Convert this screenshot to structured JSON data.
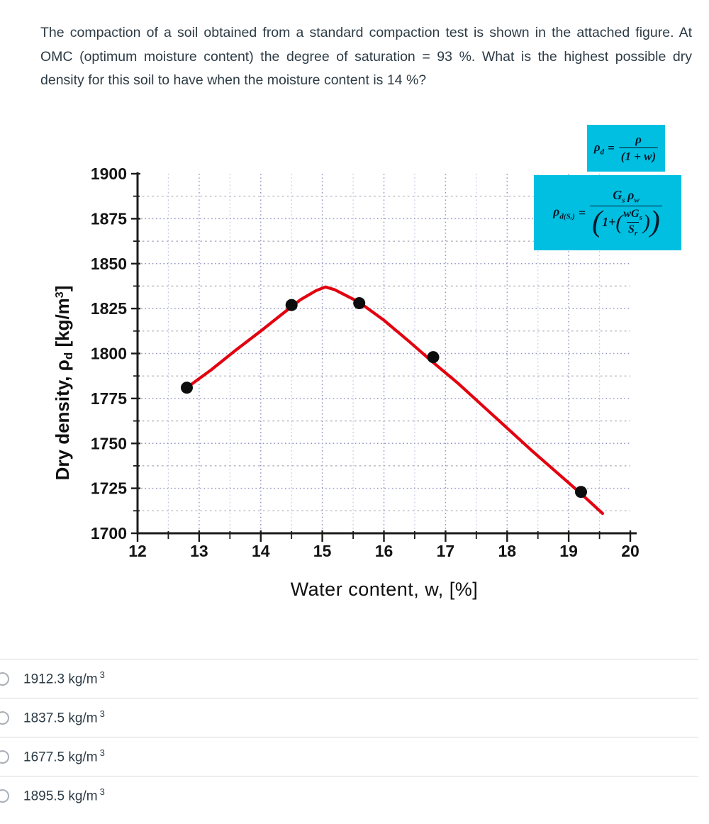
{
  "question": {
    "text": "The compaction of a soil obtained from a standard compaction test is shown in the attached figure. At OMC (optimum moisture content) the degree of saturation = 93 %.  What is the highest possible  dry density for this soil to have when the moisture content is 14 %?"
  },
  "figure": {
    "formulas": {
      "box_color": "#00bfe0",
      "f1": {
        "lhs": "ρ",
        "lhs_sub": "d",
        "eq": "=",
        "num": "ρ",
        "den": "(1 + w)"
      },
      "f2": {
        "lhs": "ρ",
        "lhs_sub": "d(Sᵣ)",
        "eq": "=",
        "num_g": "G",
        "num_g_sub": "s",
        "num_rho": "ρ",
        "num_rho_sub": "w",
        "den_one": "1+",
        "inner_num": "wG",
        "inner_num_sub": "s",
        "inner_den": "S",
        "inner_den_sub": "r"
      }
    }
  },
  "chart_data": {
    "type": "scatter",
    "title": "",
    "xlabel": "Water content, w, [%]",
    "ylabel": "Dry density, ρd [kg/m³]",
    "ylabel_parts": {
      "main": "Dry density, ρ",
      "sub": "d",
      "mid": " [kg/m",
      "sup": "3",
      "end": "]"
    },
    "xlim": [
      12,
      20
    ],
    "ylim": [
      1700,
      1900
    ],
    "x_major_step": 1,
    "x_minor_step": 0.5,
    "y_major_step": 25,
    "y_minor_step": 12.5,
    "grid": "on",
    "points": [
      [
        12.8,
        1781
      ],
      [
        14.5,
        1827
      ],
      [
        15.6,
        1828
      ],
      [
        16.8,
        1798
      ],
      [
        19.2,
        1723
      ]
    ],
    "curve": [
      [
        12.8,
        1781
      ],
      [
        13.2,
        1791
      ],
      [
        13.6,
        1802
      ],
      [
        14.0,
        1812.5
      ],
      [
        14.35,
        1822
      ],
      [
        14.65,
        1830
      ],
      [
        14.9,
        1835
      ],
      [
        15.05,
        1837
      ],
      [
        15.2,
        1835.5
      ],
      [
        15.6,
        1828.5
      ],
      [
        16.0,
        1818.5
      ],
      [
        16.4,
        1807
      ],
      [
        16.8,
        1795
      ],
      [
        17.2,
        1783.5
      ],
      [
        17.6,
        1771
      ],
      [
        18.0,
        1758.5
      ],
      [
        18.4,
        1746
      ],
      [
        18.8,
        1734
      ],
      [
        19.2,
        1722
      ],
      [
        19.55,
        1711
      ]
    ],
    "peak": {
      "x": 15.0,
      "y": 1837
    },
    "colors": {
      "axis": "#1b1b1b",
      "curve": "#e3000f",
      "points": "#0d0d0d",
      "grid_major": "#9296c8",
      "grid_minor": "#bfc2e2",
      "grid_minor_h": "#a6a6b4"
    }
  },
  "options": [
    {
      "label": "1912.3 kg/m",
      "sup": "3"
    },
    {
      "label": "1837.5 kg/m",
      "sup": "3"
    },
    {
      "label": "1677.5 kg/m",
      "sup": "3"
    },
    {
      "label": "1895.5 kg/m",
      "sup": "3"
    }
  ]
}
